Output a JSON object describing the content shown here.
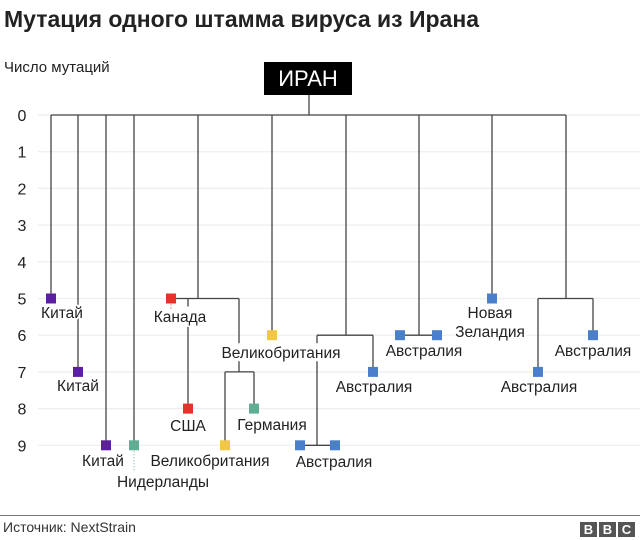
{
  "title": "Мутация одного штамма вируса из Ирана",
  "axis_title": "Число мутаций",
  "root_label": "ИРАН",
  "y_ticks": [
    0,
    1,
    2,
    3,
    4,
    5,
    6,
    7,
    8,
    9
  ],
  "colors": {
    "china": "#5b1fa0",
    "canada_usa": "#e8312a",
    "uk": "#f2c744",
    "europe": "#5fae93",
    "australia": "#4a7fcc"
  },
  "leaves": [
    {
      "label": "Китай",
      "mutations": 5,
      "color": "china"
    },
    {
      "label": "Китай",
      "mutations": 7,
      "color": "china"
    },
    {
      "label": "Китай",
      "mutations": 9,
      "color": "china"
    },
    {
      "label": "Нидерланды",
      "mutations": 9,
      "color": "europe"
    },
    {
      "label": "Канада",
      "mutations": 5,
      "color": "canada_usa"
    },
    {
      "label": "США",
      "mutations": 8,
      "color": "canada_usa"
    },
    {
      "label": "Великобритания",
      "mutations": 9,
      "color": "uk"
    },
    {
      "label": "Германия",
      "mutations": 8,
      "color": "europe"
    },
    {
      "label": "Великобритания",
      "mutations": 6,
      "color": "uk"
    },
    {
      "label": "Австралия",
      "mutations": 9,
      "color": "australia",
      "count": 2
    },
    {
      "label": "Австралия",
      "mutations": 7,
      "color": "australia"
    },
    {
      "label": "Австралия",
      "mutations": 6,
      "color": "australia",
      "count": 2
    },
    {
      "label": [
        "Новая",
        "Зеландия"
      ],
      "mutations": 5,
      "color": "australia"
    },
    {
      "label": "Австралия",
      "mutations": 7,
      "color": "australia"
    },
    {
      "label": "Австралия",
      "mutations": 6,
      "color": "australia"
    }
  ],
  "footer": {
    "source": "Источник: NextStrain",
    "logo": [
      "B",
      "B",
      "C"
    ]
  }
}
